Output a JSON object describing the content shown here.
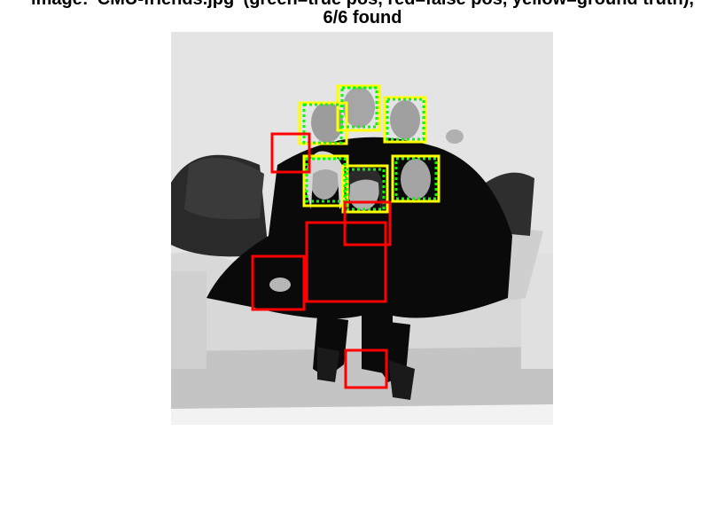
{
  "title": {
    "line1": "image: 'CMU-friends.jpg' (green=true pos, red=false pos, yellow=ground truth),",
    "line2": "6/6 found"
  },
  "legend_colors": {
    "true_pos": "#00ff00",
    "false_pos": "#ff0000",
    "ground_truth": "#ffff00"
  },
  "scene": {
    "background": "#e3e3e3",
    "people_color": "#080808",
    "face_color": "#9a9a9a",
    "sofa_color": "#dcdcdc",
    "pillow_dark": "#2a2a2a"
  }
}
